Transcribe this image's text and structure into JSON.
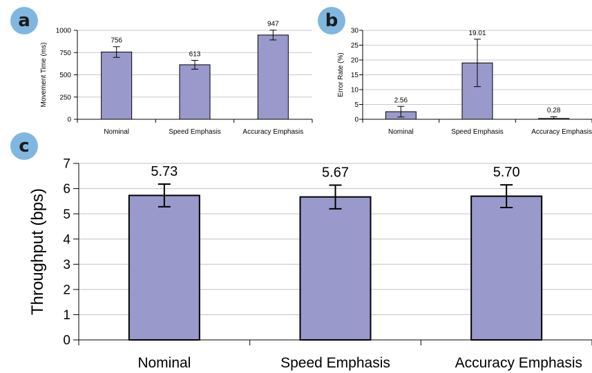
{
  "panels": [
    {
      "label": "a"
    },
    {
      "label": "b"
    },
    {
      "label": "c"
    }
  ],
  "colors": {
    "bar_fill": "#9999cc",
    "bar_stroke": "#000000",
    "grid": "#c0c0c0",
    "badge": "#7fb7e0"
  },
  "chart_data": [
    {
      "type": "bar",
      "panel": "a",
      "categories": [
        "Nominal",
        "Speed Emphasis",
        "Accuracy Emphasis"
      ],
      "values": [
        756,
        613,
        947
      ],
      "value_labels": [
        "756",
        "613",
        "947"
      ],
      "error": [
        60,
        50,
        55
      ],
      "ylabel": "Movement Time (ms)",
      "xlabel": "",
      "ylim": [
        0,
        1000
      ],
      "yticks": [
        0,
        250,
        500,
        750,
        1000
      ],
      "grid": true
    },
    {
      "type": "bar",
      "panel": "b",
      "categories": [
        "Nominal",
        "Speed Emphasis",
        "Accuracy Emphasis"
      ],
      "values": [
        2.56,
        19.01,
        0.28
      ],
      "value_labels": [
        "2.56",
        "19.01",
        "0.28"
      ],
      "error": [
        1.8,
        8.0,
        0.6
      ],
      "ylabel": "Error Rate (%)",
      "xlabel": "",
      "ylim": [
        0,
        30
      ],
      "yticks": [
        0,
        5,
        10,
        15,
        20,
        25,
        30
      ],
      "grid": true
    },
    {
      "type": "bar",
      "panel": "c",
      "categories": [
        "Nominal",
        "Speed Emphasis",
        "Accuracy Emphasis"
      ],
      "values": [
        5.73,
        5.67,
        5.7
      ],
      "value_labels": [
        "5.73",
        "5.67",
        "5.70"
      ],
      "error": [
        0.45,
        0.47,
        0.45
      ],
      "ylabel": "Throughput (bps)",
      "xlabel": "",
      "ylim": [
        0,
        7
      ],
      "yticks": [
        0,
        1,
        2,
        3,
        4,
        5,
        6,
        7
      ],
      "grid": true
    }
  ]
}
